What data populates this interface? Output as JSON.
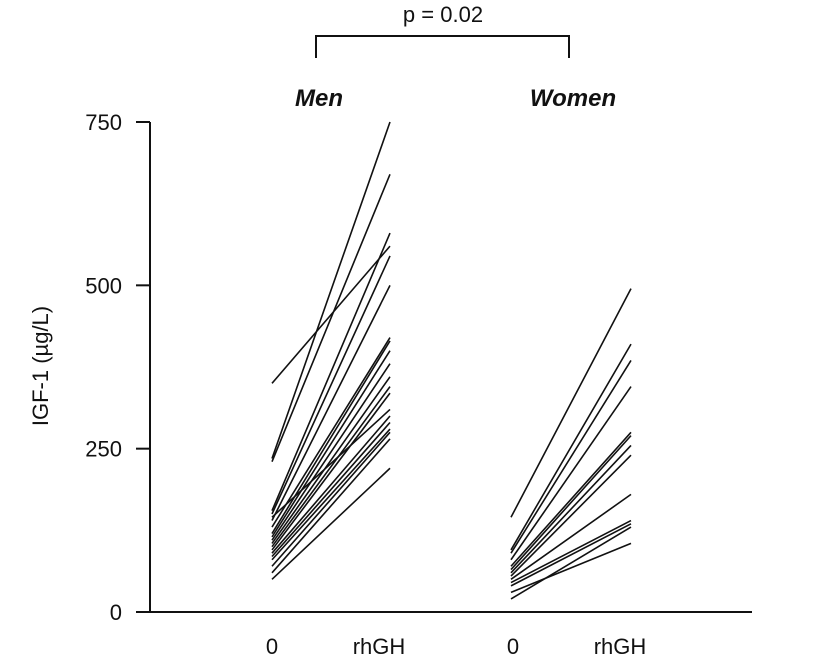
{
  "chart_data": {
    "type": "line",
    "ylabel": "IGF-1 (µg/L)",
    "ylim": [
      0,
      750
    ],
    "yticks": [
      0,
      250,
      500,
      750
    ],
    "grid": false,
    "annotation": "p = 0.02",
    "groups": [
      {
        "title": "Men",
        "xlabels": [
          "0",
          "rhGH"
        ],
        "pairs": [
          [
            350,
            560
          ],
          [
            235,
            750
          ],
          [
            230,
            670
          ],
          [
            155,
            580
          ],
          [
            150,
            545
          ],
          [
            140,
            500
          ],
          [
            130,
            420
          ],
          [
            120,
            415
          ],
          [
            115,
            400
          ],
          [
            110,
            380
          ],
          [
            105,
            360
          ],
          [
            100,
            345
          ],
          [
            95,
            335
          ],
          [
            90,
            300
          ],
          [
            85,
            290
          ],
          [
            80,
            280
          ],
          [
            70,
            275
          ],
          [
            60,
            265
          ],
          [
            50,
            220
          ],
          [
            145,
            310
          ]
        ]
      },
      {
        "title": "Women",
        "xlabels": [
          "0",
          "rhGH"
        ],
        "pairs": [
          [
            145,
            495
          ],
          [
            95,
            410
          ],
          [
            90,
            385
          ],
          [
            80,
            345
          ],
          [
            70,
            275
          ],
          [
            65,
            270
          ],
          [
            60,
            255
          ],
          [
            55,
            240
          ],
          [
            50,
            180
          ],
          [
            45,
            140
          ],
          [
            40,
            135
          ],
          [
            30,
            105
          ],
          [
            20,
            130
          ]
        ]
      }
    ]
  }
}
